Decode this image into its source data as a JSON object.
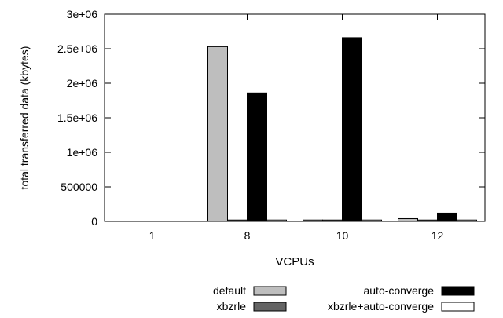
{
  "chart_data": {
    "type": "bar",
    "xlabel": "VCPUs",
    "ylabel": "total transferred data (kbytes)",
    "categories": [
      "1",
      "8",
      "10",
      "12"
    ],
    "ylim": [
      0,
      3000000
    ],
    "yticks": [
      {
        "value": 0,
        "label": "0"
      },
      {
        "value": 500000,
        "label": "500000"
      },
      {
        "value": 1000000,
        "label": "1e+06"
      },
      {
        "value": 1500000,
        "label": "1.5e+06"
      },
      {
        "value": 2000000,
        "label": "2e+06"
      },
      {
        "value": 2500000,
        "label": "2.5e+06"
      },
      {
        "value": 3000000,
        "label": "3e+06"
      }
    ],
    "grid": false,
    "legend_position": "bottom",
    "series": [
      {
        "name": "default",
        "color": "#bebebe",
        "values": [
          0,
          2530000,
          20000,
          40000
        ]
      },
      {
        "name": "xbzrle",
        "color": "#646464",
        "values": [
          0,
          20000,
          20000,
          20000
        ]
      },
      {
        "name": "auto-converge",
        "color": "#000000",
        "values": [
          0,
          1860000,
          2660000,
          120000
        ]
      },
      {
        "name": "xbzrle+auto-converge",
        "color": "#ffffff",
        "values": [
          0,
          20000,
          20000,
          20000
        ]
      }
    ]
  }
}
